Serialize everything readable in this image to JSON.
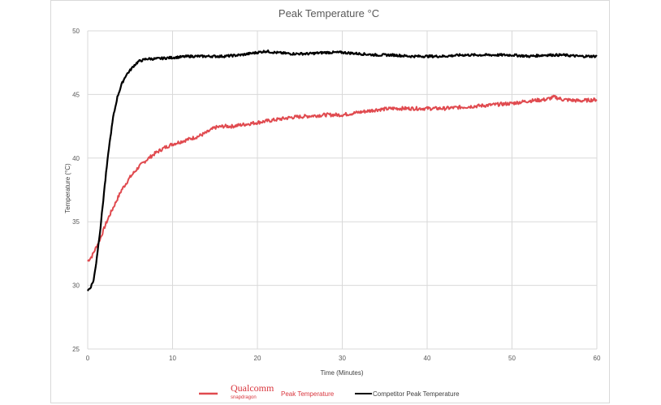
{
  "chart_data": {
    "type": "line",
    "title": "Peak Temperature °C",
    "xlabel": "Time (Minutes)",
    "ylabel": "Temperature   (°C)",
    "xlim": [
      0,
      60
    ],
    "ylim": [
      25,
      50
    ],
    "xticks": [
      0,
      10,
      20,
      30,
      40,
      50,
      60
    ],
    "yticks": [
      25,
      30,
      35,
      40,
      45,
      50
    ],
    "grid": true,
    "legend_position": "bottom",
    "series": [
      {
        "name": "Peak Temperature",
        "legend_logo": "Qualcomm snapdragon",
        "color": "#e04a4f",
        "x": [
          0,
          0.5,
          1,
          1.5,
          2,
          2.5,
          3,
          4,
          5,
          6,
          7,
          8,
          9,
          10,
          11,
          12,
          13,
          14,
          15,
          16,
          17,
          18,
          20,
          22,
          24,
          26,
          28,
          30,
          32,
          34,
          36,
          38,
          40,
          42,
          44,
          46,
          48,
          50,
          52,
          54,
          55,
          56,
          58,
          60
        ],
        "y": [
          31.9,
          32.3,
          33.0,
          33.7,
          34.6,
          35.4,
          36.1,
          37.5,
          38.5,
          39.3,
          39.9,
          40.4,
          40.8,
          41.1,
          41.3,
          41.5,
          41.7,
          42.0,
          42.4,
          42.5,
          42.5,
          42.6,
          42.8,
          43.0,
          43.2,
          43.3,
          43.4,
          43.4,
          43.6,
          43.8,
          43.9,
          43.9,
          43.9,
          43.9,
          44.0,
          44.1,
          44.2,
          44.3,
          44.5,
          44.6,
          44.8,
          44.6,
          44.5,
          44.6
        ]
      },
      {
        "name": "Competitor Peak Temperature",
        "color": "#000000",
        "x": [
          0,
          0.3,
          0.7,
          1,
          1.5,
          2,
          2.5,
          3,
          3.5,
          4,
          4.5,
          5,
          5.5,
          6,
          7,
          8,
          10,
          12,
          14,
          16,
          18,
          20,
          21,
          22,
          24,
          26,
          28,
          30,
          32,
          34,
          36,
          38,
          40,
          42,
          44,
          46,
          48,
          50,
          52,
          54,
          56,
          58,
          60
        ],
        "y": [
          29.6,
          29.8,
          30.4,
          31.8,
          34.5,
          37.8,
          40.8,
          43.2,
          44.8,
          45.8,
          46.5,
          46.9,
          47.3,
          47.6,
          47.8,
          47.8,
          47.9,
          48.0,
          48.0,
          48.0,
          48.1,
          48.3,
          48.4,
          48.3,
          48.2,
          48.2,
          48.3,
          48.3,
          48.2,
          48.1,
          48.1,
          48.0,
          48.0,
          48.0,
          48.1,
          48.1,
          48.1,
          48.1,
          48.0,
          48.1,
          48.1,
          48.0,
          48.0
        ]
      }
    ]
  }
}
